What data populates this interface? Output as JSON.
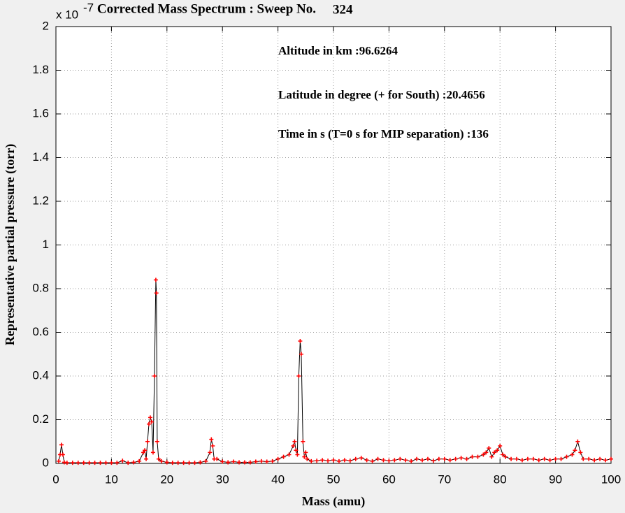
{
  "chart_data": {
    "type": "line",
    "title": "Corrected Mass Spectrum : Sweep No.",
    "title_number": "324",
    "x_label": "Mass (amu)",
    "y_label": "Representative partial pressure (torr)",
    "y_exponent": {
      "base": "x 10",
      "power": "-7"
    },
    "annotations": [
      "Altitude in km   :96.6264",
      "Latitude in degree (+ for South)   :20.4656",
      "Time in s (T=0 s for MIP separation)   :136"
    ],
    "xlim": [
      0,
      100
    ],
    "ylim": [
      0,
      2
    ],
    "xticks": [
      0,
      10,
      20,
      30,
      40,
      50,
      60,
      70,
      80,
      90,
      100
    ],
    "yticks": [
      0,
      0.2,
      0.4,
      0.6,
      0.8,
      1,
      1.2,
      1.4,
      1.6,
      1.8,
      2
    ],
    "grid": true,
    "line_color": "#000000",
    "marker_color": "#ff0000",
    "x": [
      0.5,
      0.75,
      1,
      1.25,
      1.5,
      2,
      3,
      4,
      5,
      6,
      7,
      8,
      9,
      10,
      11,
      12,
      13,
      14,
      15,
      15.75,
      16,
      16.25,
      16.5,
      16.75,
      17,
      17.25,
      17.5,
      17.75,
      18,
      18.1,
      18.25,
      18.5,
      19,
      20,
      21,
      22,
      23,
      24,
      25,
      26,
      27,
      27.75,
      28,
      28.25,
      28.5,
      29,
      30,
      31,
      32,
      33,
      34,
      35,
      36,
      37,
      38,
      39,
      40,
      41,
      42,
      42.75,
      43,
      43.25,
      43.5,
      43.75,
      44,
      44.2,
      44.5,
      44.75,
      45,
      45.25,
      46,
      47,
      48,
      49,
      50,
      51,
      52,
      53,
      54,
      55,
      56,
      57,
      58,
      59,
      60,
      61,
      62,
      63,
      64,
      65,
      66,
      67,
      68,
      69,
      70,
      71,
      72,
      73,
      74,
      75,
      76,
      77,
      77.5,
      78,
      78.5,
      79,
      79.5,
      80,
      80.5,
      81,
      82,
      83,
      84,
      85,
      86,
      87,
      88,
      89,
      90,
      91,
      92,
      93,
      93.5,
      94,
      94.5,
      95,
      96,
      97,
      98,
      99,
      100
    ],
    "values": [
      0.01,
      0.04,
      0.085,
      0.04,
      0.005,
      0.003,
      0.003,
      0.003,
      0.003,
      0.003,
      0.003,
      0.003,
      0.003,
      0.003,
      0.003,
      0.012,
      0.003,
      0.005,
      0.01,
      0.05,
      0.06,
      0.02,
      0.1,
      0.18,
      0.21,
      0.19,
      0.05,
      0.4,
      0.84,
      0.78,
      0.1,
      0.02,
      0.01,
      0.005,
      0.003,
      0.003,
      0.003,
      0.003,
      0.003,
      0.005,
      0.01,
      0.05,
      0.11,
      0.08,
      0.02,
      0.02,
      0.008,
      0.005,
      0.008,
      0.005,
      0.005,
      0.005,
      0.008,
      0.01,
      0.008,
      0.01,
      0.02,
      0.03,
      0.04,
      0.08,
      0.1,
      0.06,
      0.04,
      0.4,
      0.56,
      0.5,
      0.1,
      0.03,
      0.05,
      0.02,
      0.01,
      0.012,
      0.015,
      0.012,
      0.015,
      0.01,
      0.015,
      0.012,
      0.02,
      0.025,
      0.015,
      0.01,
      0.02,
      0.015,
      0.012,
      0.015,
      0.02,
      0.015,
      0.01,
      0.02,
      0.015,
      0.02,
      0.012,
      0.02,
      0.02,
      0.015,
      0.02,
      0.025,
      0.02,
      0.03,
      0.03,
      0.04,
      0.05,
      0.07,
      0.03,
      0.05,
      0.06,
      0.08,
      0.04,
      0.03,
      0.02,
      0.02,
      0.015,
      0.02,
      0.02,
      0.015,
      0.02,
      0.015,
      0.02,
      0.02,
      0.03,
      0.04,
      0.06,
      0.1,
      0.05,
      0.02,
      0.02,
      0.015,
      0.02,
      0.015,
      0.02
    ]
  }
}
